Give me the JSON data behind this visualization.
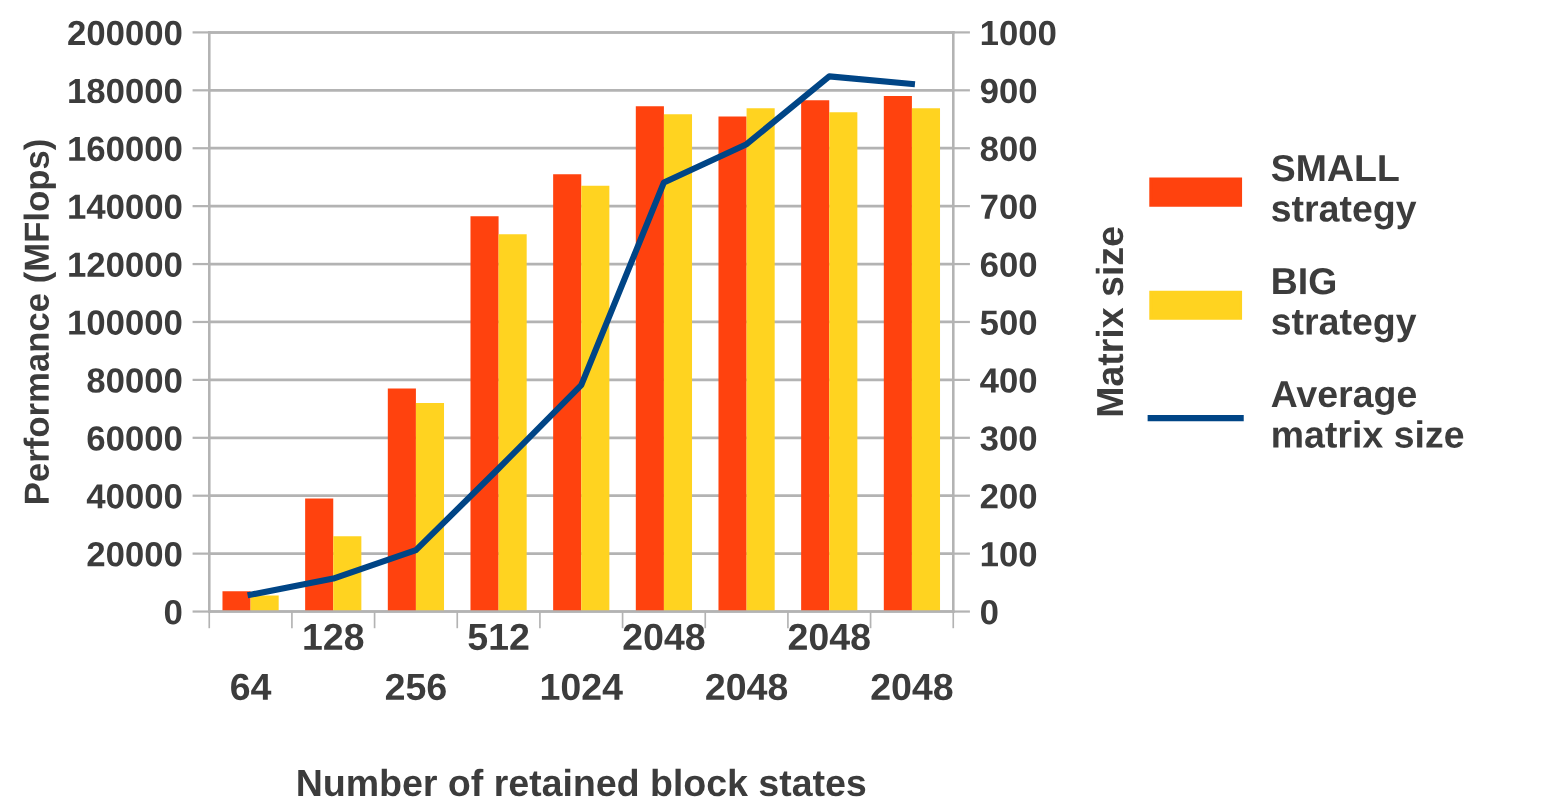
{
  "chart_data": {
    "type": "bar",
    "xlabel": "Number of retained block states",
    "ylabel": "Performance (MFlops)",
    "y2label": "Matrix size",
    "categories": [
      "64",
      "128",
      "256",
      "512",
      "1024",
      "2048",
      "2048",
      "2048",
      "2048"
    ],
    "series": [
      {
        "name": "SMALL strategy",
        "color": "#ff420e",
        "values": [
          7000,
          39000,
          77000,
          136500,
          151000,
          174500,
          171000,
          176600,
          178000
        ]
      },
      {
        "name": "BIG strategy",
        "color": "#ffd320",
        "values": [
          5500,
          26000,
          72000,
          130300,
          147000,
          171700,
          173800,
          172400,
          173800
        ]
      },
      {
        "name": "Average matrix size",
        "type": "line",
        "axis": "y2",
        "color": "#004586",
        "values": [
          29,
          57,
          106,
          247,
          391,
          741,
          807,
          924,
          911
        ]
      }
    ],
    "ylim": [
      0,
      200000
    ],
    "yticks": [
      0,
      20000,
      40000,
      60000,
      80000,
      100000,
      120000,
      140000,
      160000,
      180000,
      200000
    ],
    "y2lim": [
      0,
      1000
    ],
    "y2ticks": [
      0,
      100,
      200,
      300,
      400,
      500,
      600,
      700,
      800,
      900,
      1000
    ],
    "grid": "y",
    "legend": "right"
  }
}
